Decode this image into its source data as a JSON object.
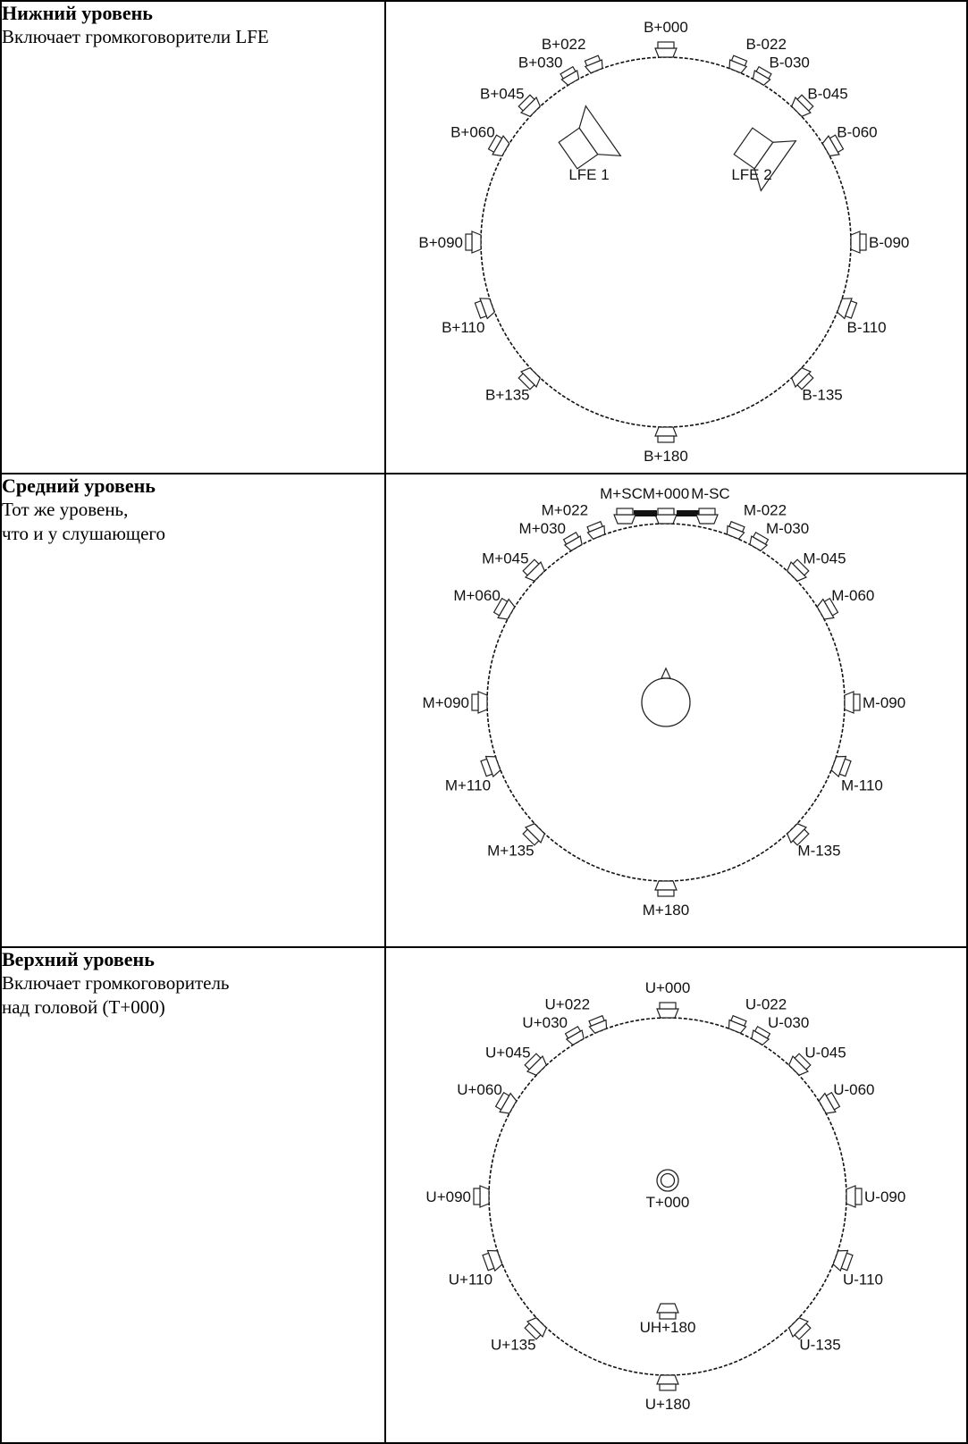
{
  "levels": [
    {
      "id": "bottom",
      "title": "Нижний уровень",
      "description": "Включает громкоговорители LFE",
      "speakers": [
        {
          "label": "B+000",
          "azimuth": 0
        },
        {
          "label": "B+022",
          "azimuth": 22
        },
        {
          "label": "B+030",
          "azimuth": 30
        },
        {
          "label": "B+045",
          "azimuth": 45
        },
        {
          "label": "B+060",
          "azimuth": 60
        },
        {
          "label": "B+090",
          "azimuth": 90
        },
        {
          "label": "B+110",
          "azimuth": 110
        },
        {
          "label": "B+135",
          "azimuth": 135
        },
        {
          "label": "B+180",
          "azimuth": 180
        },
        {
          "label": "B-022",
          "azimuth": -22
        },
        {
          "label": "B-030",
          "azimuth": -30
        },
        {
          "label": "B-045",
          "azimuth": -45
        },
        {
          "label": "B-060",
          "azimuth": -60
        },
        {
          "label": "B-090",
          "azimuth": -90
        },
        {
          "label": "B-110",
          "azimuth": -110
        },
        {
          "label": "B-135",
          "azimuth": -135
        }
      ],
      "extras": [
        {
          "type": "lfe",
          "label": "LFE 1"
        },
        {
          "type": "lfe",
          "label": "LFE 2"
        }
      ]
    },
    {
      "id": "middle",
      "title": "Средний уровень",
      "description": "Тот же уровень,\nчто и у слушающего",
      "speakers": [
        {
          "label": "M+000",
          "azimuth": 0
        },
        {
          "label": "M+SC",
          "azimuth": 8
        },
        {
          "label": "M-SC",
          "azimuth": -8
        },
        {
          "label": "M+022",
          "azimuth": 22
        },
        {
          "label": "M+030",
          "azimuth": 30
        },
        {
          "label": "M+045",
          "azimuth": 45
        },
        {
          "label": "M+060",
          "azimuth": 60
        },
        {
          "label": "M+090",
          "azimuth": 90
        },
        {
          "label": "M+110",
          "azimuth": 110
        },
        {
          "label": "M+135",
          "azimuth": 135
        },
        {
          "label": "M+180",
          "azimuth": 180
        },
        {
          "label": "M-022",
          "azimuth": -22
        },
        {
          "label": "M-030",
          "azimuth": -30
        },
        {
          "label": "M-045",
          "azimuth": -45
        },
        {
          "label": "M-060",
          "azimuth": -60
        },
        {
          "label": "M-090",
          "azimuth": -90
        },
        {
          "label": "M-110",
          "azimuth": -110
        },
        {
          "label": "M-135",
          "azimuth": -135
        }
      ],
      "extras": [
        {
          "type": "listener"
        }
      ]
    },
    {
      "id": "top",
      "title": "Верхний уровень",
      "description": "Включает громкоговоритель\nнад головой (T+000)",
      "speakers": [
        {
          "label": "U+000",
          "azimuth": 0
        },
        {
          "label": "U+022",
          "azimuth": 22
        },
        {
          "label": "U+030",
          "azimuth": 30
        },
        {
          "label": "U+045",
          "azimuth": 45
        },
        {
          "label": "U+060",
          "azimuth": 60
        },
        {
          "label": "U+090",
          "azimuth": 90
        },
        {
          "label": "U+110",
          "azimuth": 110
        },
        {
          "label": "U+135",
          "azimuth": 135
        },
        {
          "label": "U+180",
          "azimuth": 180
        },
        {
          "label": "U-022",
          "azimuth": -22
        },
        {
          "label": "U-030",
          "azimuth": -30
        },
        {
          "label": "U-045",
          "azimuth": -45
        },
        {
          "label": "U-060",
          "azimuth": -60
        },
        {
          "label": "U-090",
          "azimuth": -90
        },
        {
          "label": "U-110",
          "azimuth": -110
        },
        {
          "label": "U-135",
          "azimuth": -135
        }
      ],
      "extras": [
        {
          "type": "overhead",
          "label": "T+000"
        },
        {
          "type": "rear-inner",
          "label": "UH+180"
        }
      ]
    }
  ]
}
